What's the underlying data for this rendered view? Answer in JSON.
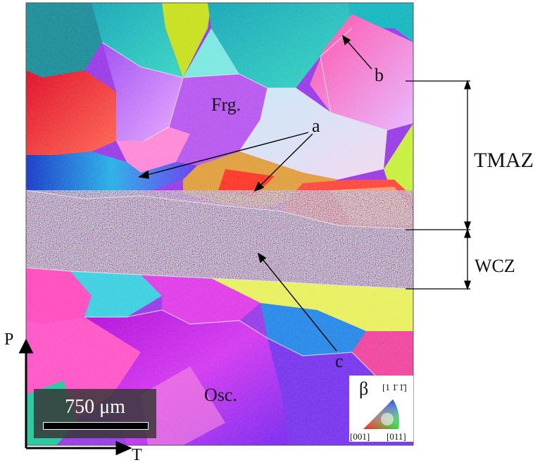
{
  "labels": {
    "frg": "Frg.",
    "osc": "Osc.",
    "a": "a",
    "b": "b",
    "c": "c",
    "tmaz": "TMAZ",
    "wcz": "WCZ",
    "axis_p": "P",
    "axis_t": "T"
  },
  "scale_bar": {
    "text": "750 μm"
  },
  "ipf_legend": {
    "phase": "β",
    "top": "[1 1̄ 1̄]",
    "bottom_left": "[001]",
    "bottom_right": "[011]"
  }
}
